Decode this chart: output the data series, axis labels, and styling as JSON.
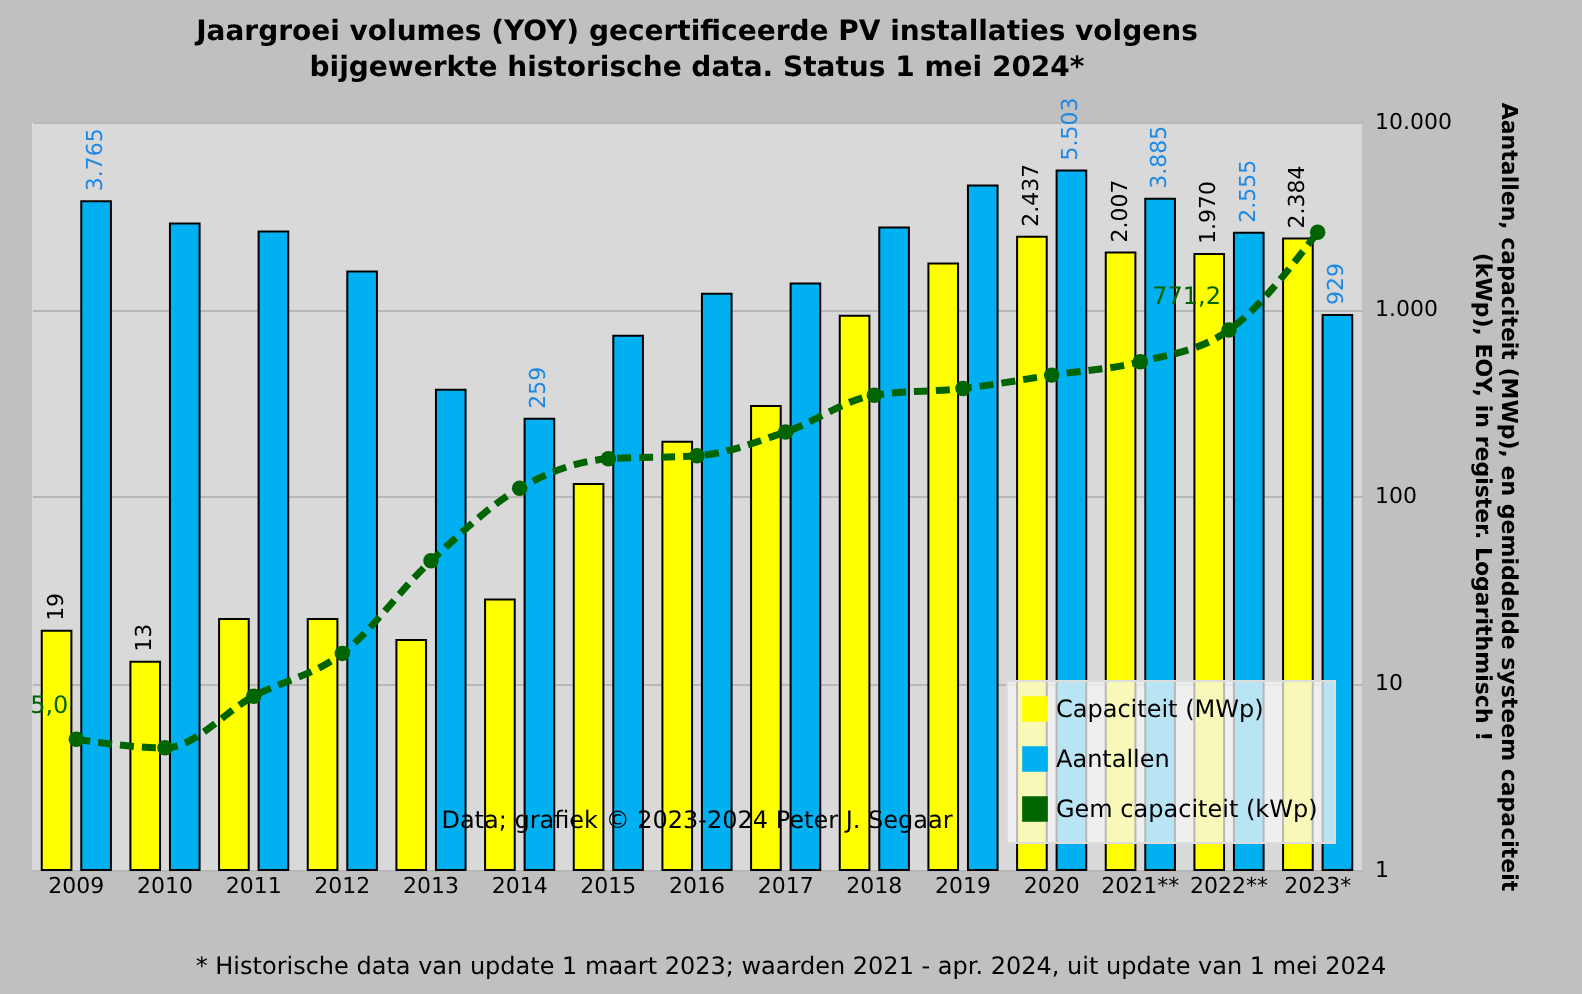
{
  "chart_data": {
    "type": "bar",
    "title": "Jaargroei volumes (YOY) gecertificeerde PV installaties volgens\nbijgewerkte historische data. Status 1 mei 2024*",
    "ylabel": "Aantallen, capaciteit (MWp), en gemiddelde systeem capaciteit\n(kWp), EOY, in register. Logarithmisch !",
    "categories": [
      "2009",
      "2010",
      "2011",
      "2012",
      "2013",
      "2014",
      "2015",
      "2016",
      "2017",
      "2018",
      "2019",
      "2020",
      "2021**",
      "2022**",
      "2023*"
    ],
    "series": [
      {
        "name": "Capaciteit (MWp)",
        "color": "#ffff00",
        "values": [
          19,
          13,
          22,
          22,
          17,
          28,
          116,
          195,
          303,
          921,
          1750,
          2437,
          2007,
          1970,
          2384
        ],
        "value_labels": [
          "19",
          "13",
          null,
          null,
          null,
          null,
          null,
          null,
          null,
          null,
          null,
          "2.437",
          "2.007",
          "1.970",
          "2.384"
        ]
      },
      {
        "name": "Aantallen",
        "color": "#00b0f0",
        "values": [
          3765,
          2865,
          2597,
          1585,
          370,
          259,
          720,
          1208,
          1367,
          2727,
          4575,
          5503,
          3885,
          2555,
          929
        ],
        "value_labels": [
          "3.765",
          null,
          null,
          null,
          null,
          "259",
          null,
          null,
          null,
          null,
          null,
          "5.503",
          "3.885",
          "2.555",
          "929"
        ]
      },
      {
        "name": "Gem capaciteit (kWp)",
        "type": "line",
        "color": "#006400",
        "line_style": "dashed",
        "marker": "circle",
        "values": [
          5.0,
          4.5,
          8.5,
          14.4,
          45,
          110,
          158,
          164,
          220,
          346,
          376,
          443,
          522,
          771.2,
          2570
        ],
        "value_labels": [
          "5,0",
          null,
          null,
          null,
          null,
          null,
          null,
          null,
          null,
          null,
          null,
          null,
          null,
          "771,2",
          null
        ]
      }
    ],
    "log": "y",
    "ylim": [
      1,
      10000
    ],
    "yticks": [
      1,
      10,
      100,
      {
        "value": 1000,
        "label": "1.000"
      },
      {
        "value": 10000,
        "label": "10.000"
      }
    ],
    "grid": "y",
    "legend": "bottom right",
    "annotations": [
      "Data; grafiek © 2023-2024 Peter J. Segaar",
      "* Historische data van update 1 maart 2023; waarden 2021 - apr. 2024, uit update van 1 mei 2024"
    ]
  }
}
